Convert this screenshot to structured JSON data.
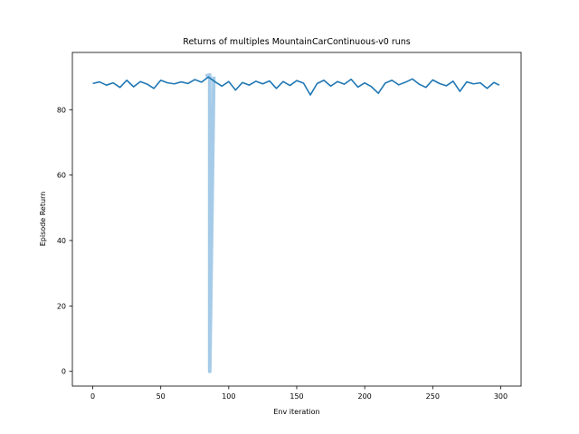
{
  "chart_data": {
    "type": "line",
    "title": "Returns of multiples MountainCarContinuous-v0 runs",
    "xlabel": "Env iteration",
    "ylabel": "Episode Return",
    "xlim": [
      -15,
      315
    ],
    "ylim": [
      -4.5,
      97.5
    ],
    "xticks": [
      0,
      50,
      100,
      150,
      200,
      250,
      300
    ],
    "yticks": [
      0,
      20,
      40,
      60,
      80
    ],
    "grid": false,
    "legend": "none",
    "series": [
      {
        "color": "#1f77b4",
        "x": [
          0,
          5,
          10,
          15,
          20,
          25,
          30,
          35,
          40,
          45,
          50,
          55,
          60,
          65,
          70,
          75,
          80,
          85,
          90,
          95,
          100,
          105,
          110,
          115,
          120,
          125,
          130,
          135,
          140,
          145,
          150,
          155,
          160,
          165,
          170,
          175,
          180,
          185,
          190,
          195,
          200,
          205,
          210,
          215,
          220,
          225,
          230,
          235,
          240,
          245,
          250,
          255,
          260,
          265,
          270,
          275,
          280,
          285,
          290,
          295,
          299
        ],
        "y": [
          88.0,
          88.5,
          87.5,
          88.2,
          86.8,
          89.0,
          87.0,
          88.6,
          87.8,
          86.5,
          89.0,
          88.2,
          87.9,
          88.5,
          88.0,
          89.2,
          88.4,
          90.0,
          88.5,
          87.2,
          88.6,
          86.0,
          88.3,
          87.5,
          88.7,
          87.9,
          88.8,
          86.5,
          88.6,
          87.4,
          88.9,
          88.1,
          84.5,
          88.0,
          89.0,
          87.2,
          88.6,
          87.8,
          89.3,
          86.9,
          88.2,
          87.0,
          85.0,
          88.1,
          89.0,
          87.6,
          88.4,
          89.4,
          87.8,
          86.8,
          89.1,
          88.0,
          87.3,
          88.7,
          85.6,
          88.5,
          87.9,
          88.2,
          86.5,
          88.3,
          87.5
        ]
      },
      {
        "color": "#a6cbe8",
        "x": [
          83,
          86,
          86,
          89
        ],
        "y": [
          90.3,
          90.6,
          0,
          90.1
        ]
      }
    ]
  }
}
